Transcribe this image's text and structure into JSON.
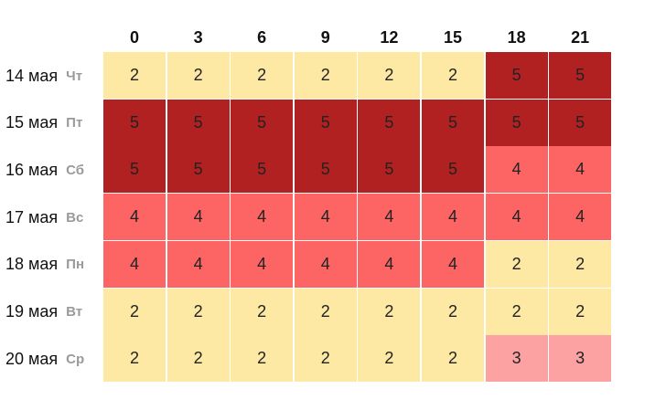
{
  "chart_data": {
    "type": "heatmap",
    "x": [
      "0",
      "3",
      "6",
      "9",
      "12",
      "15",
      "18",
      "21"
    ],
    "rows": [
      {
        "date": "14 мая",
        "day": "Чт",
        "values": [
          2,
          2,
          2,
          2,
          2,
          2,
          5,
          5
        ]
      },
      {
        "date": "15 мая",
        "day": "Пт",
        "values": [
          5,
          5,
          5,
          5,
          5,
          5,
          5,
          5
        ]
      },
      {
        "date": "16 мая",
        "day": "Сб",
        "values": [
          5,
          5,
          5,
          5,
          5,
          5,
          4,
          4
        ]
      },
      {
        "date": "17 мая",
        "day": "Вс",
        "values": [
          4,
          4,
          4,
          4,
          4,
          4,
          4,
          4
        ]
      },
      {
        "date": "18 мая",
        "day": "Пн",
        "values": [
          4,
          4,
          4,
          4,
          4,
          4,
          2,
          2
        ]
      },
      {
        "date": "19 мая",
        "day": "Вт",
        "values": [
          2,
          2,
          2,
          2,
          2,
          2,
          2,
          2
        ]
      },
      {
        "date": "20 мая",
        "day": "Ср",
        "values": [
          2,
          2,
          2,
          2,
          2,
          2,
          3,
          3
        ]
      }
    ],
    "colors": {
      "2": "#fde9a3",
      "3": "#fda2a2",
      "4": "#fd6565",
      "5": "#b22121"
    }
  }
}
